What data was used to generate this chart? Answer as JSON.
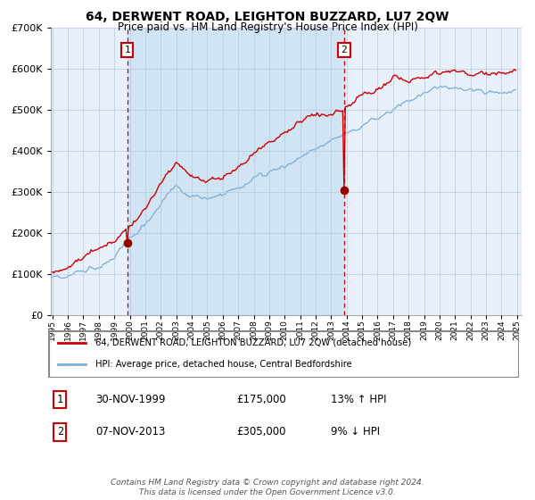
{
  "title": "64, DERWENT ROAD, LEIGHTON BUZZARD, LU7 2QW",
  "subtitle": "Price paid vs. HM Land Registry's House Price Index (HPI)",
  "sale1_display": "30-NOV-1999",
  "sale1_price": 175000,
  "sale1_hpi_pct": "13% ↑ HPI",
  "sale2_display": "07-NOV-2013",
  "sale2_price": 305000,
  "sale2_hpi_pct": "9% ↓ HPI",
  "hpi_line_color": "#7aadd4",
  "price_line_color": "#cc0000",
  "sale_dot_color": "#990000",
  "dashed_line_color": "#cc0000",
  "shade_color": "#d0e4f4",
  "background_color": "#e8f1fa",
  "grid_color": "#b8c8dc",
  "legend_label_price": "64, DERWENT ROAD, LEIGHTON BUZZARD, LU7 2QW (detached house)",
  "legend_label_hpi": "HPI: Average price, detached house, Central Bedfordshire",
  "footer_text": "Contains HM Land Registry data © Crown copyright and database right 2024.\nThis data is licensed under the Open Government Licence v3.0.",
  "ylim": [
    0,
    700000
  ],
  "yticks": [
    0,
    100000,
    200000,
    300000,
    400000,
    500000,
    600000,
    700000
  ],
  "year_start": 1995,
  "year_end": 2025
}
